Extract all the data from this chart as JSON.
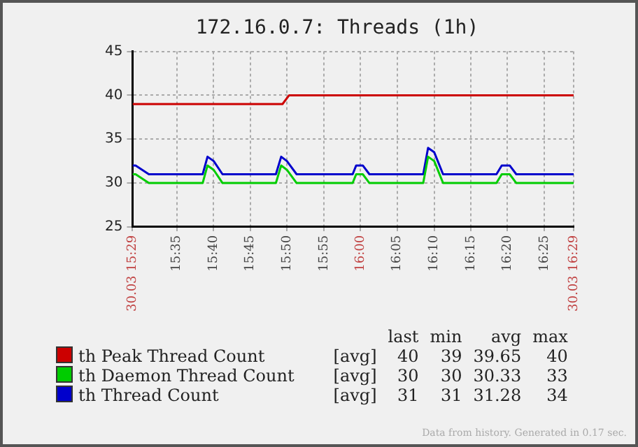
{
  "chart_data": {
    "type": "line",
    "title": "172.16.0.7: Threads (1h)",
    "xlim": [
      15.483,
      16.483
    ],
    "xticks": [
      {
        "value": 15.483,
        "label": "30.03 15:29"
      },
      {
        "value": 15.583,
        "label": "15:35"
      },
      {
        "value": 15.667,
        "label": "15:40"
      },
      {
        "value": 15.75,
        "label": "15:45"
      },
      {
        "value": 15.833,
        "label": "15:50"
      },
      {
        "value": 15.917,
        "label": "15:55"
      },
      {
        "value": 16,
        "label": "16:00"
      },
      {
        "value": 16.083,
        "label": "16:05"
      },
      {
        "value": 16.167,
        "label": "16:10"
      },
      {
        "value": 16.25,
        "label": "16:15"
      },
      {
        "value": 16.333,
        "label": "16:20"
      },
      {
        "value": 16.417,
        "label": "16:25"
      },
      {
        "value": 16.483,
        "label": "30.03 16:29"
      }
    ],
    "ylim": [
      25,
      45
    ],
    "yticks": [
      25,
      30,
      35,
      40,
      45
    ],
    "grid": true,
    "legend": "bottom",
    "series": [
      {
        "name": "th Peak Thread Count",
        "color": "#cc0000",
        "x": [
          15.483,
          15.823,
          15.838,
          16.483
        ],
        "values": [
          39,
          39,
          40,
          40
        ]
      },
      {
        "name": "th Daemon Thread Count",
        "color": "#00cc00",
        "x": [
          15.483,
          15.49,
          15.52,
          15.642,
          15.653,
          15.667,
          15.687,
          15.808,
          15.82,
          15.833,
          15.855,
          15.982,
          15.99,
          16.005,
          16.02,
          16.142,
          16.153,
          16.167,
          16.187,
          16.308,
          16.32,
          16.338,
          16.353,
          16.483
        ],
        "values": [
          31,
          31,
          30,
          30,
          32,
          31.5,
          30,
          30,
          32,
          31.5,
          30,
          30,
          31,
          31,
          30,
          30,
          33,
          32.5,
          30,
          30,
          31,
          31,
          30,
          30
        ]
      },
      {
        "name": "th Thread Count",
        "color": "#0000cc",
        "x": [
          15.483,
          15.49,
          15.52,
          15.642,
          15.653,
          15.667,
          15.687,
          15.808,
          15.82,
          15.833,
          15.855,
          15.982,
          15.99,
          16.005,
          16.02,
          16.142,
          16.153,
          16.167,
          16.187,
          16.308,
          16.32,
          16.338,
          16.353,
          16.483
        ],
        "values": [
          32,
          32,
          31,
          31,
          33,
          32.5,
          31,
          31,
          33,
          32.5,
          31,
          31,
          32,
          32,
          31,
          31,
          34,
          33.5,
          31,
          31,
          32,
          32,
          31,
          31
        ]
      }
    ],
    "annotations": [
      "last",
      "min",
      "avg",
      "max",
      "[avg]",
      "40",
      "39",
      "39.65",
      "40",
      "[avg]",
      "30",
      "30",
      "30.33",
      "33",
      "[avg]",
      "31",
      "31",
      "31.28",
      "34",
      "Data from history. Generated in 0.17 sec."
    ]
  }
}
